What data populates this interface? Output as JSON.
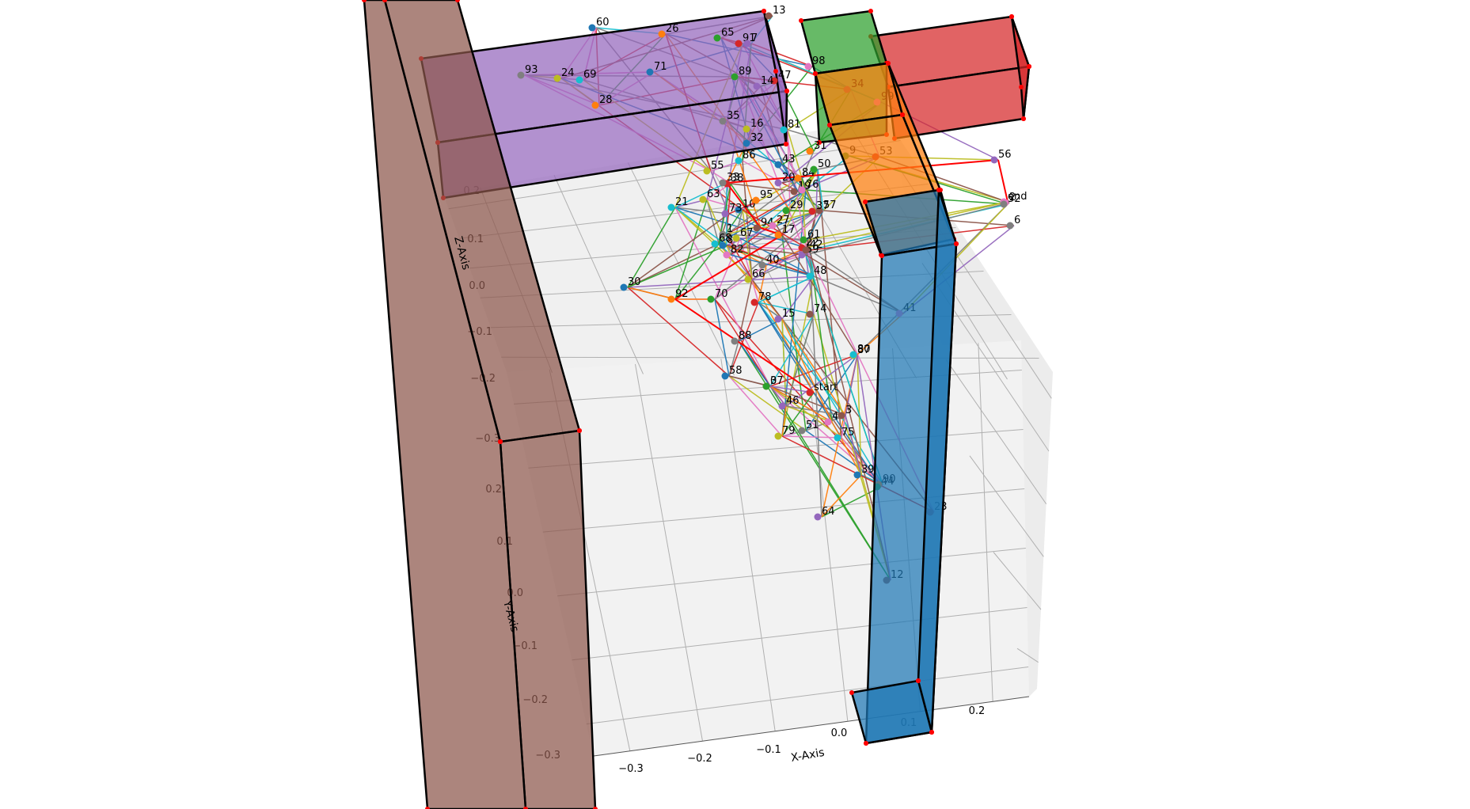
{
  "chart_data": {
    "type": "scatter",
    "subtype": "3d-graph-with-obstacles",
    "title": "",
    "axes": {
      "x": {
        "label": "X-Axis",
        "ticks": [
          "−0.3",
          "−0.2",
          "−0.1",
          "0.0",
          "0.1",
          "0.2"
        ]
      },
      "y": {
        "label": "Y-Axis",
        "ticks": [
          "0.2",
          "0.1",
          "0.0",
          "−0.1",
          "−0.2",
          "−0.3"
        ]
      },
      "z": {
        "label": "Z-Axis",
        "ticks": [
          "0.2",
          "0.1",
          "0.0",
          "−0.1",
          "−0.2",
          "−0.3"
        ]
      }
    },
    "grid": true,
    "obstacles": [
      {
        "name": "purple-box",
        "color": "#9467bd"
      },
      {
        "name": "green-box",
        "color": "#2ca02c"
      },
      {
        "name": "red-box",
        "color": "#d62728"
      },
      {
        "name": "orange-box",
        "color": "#ff7f0e"
      },
      {
        "name": "blue-box",
        "color": "#1f77b4"
      },
      {
        "name": "brown-box",
        "color": "#8c564b"
      }
    ],
    "special_nodes": [
      "start",
      "end"
    ],
    "node_labels": [
      "60",
      "26",
      "65",
      "91",
      "7",
      "13",
      "98",
      "93",
      "24",
      "69",
      "71",
      "28",
      "89",
      "47",
      "14",
      "34",
      "99",
      "35",
      "16",
      "81",
      "32",
      "31",
      "9",
      "53",
      "56",
      "57",
      "2",
      "6",
      "55",
      "86",
      "43",
      "84",
      "50",
      "38",
      "20",
      "19",
      "76",
      "33",
      "63",
      "21",
      "10",
      "95",
      "29",
      "37",
      "73",
      "94",
      "27",
      "1",
      "67",
      "68",
      "8",
      "17",
      "61",
      "22",
      "59",
      "42",
      "82",
      "40",
      "66",
      "48",
      "30",
      "92",
      "70",
      "78",
      "15",
      "74",
      "41",
      "88",
      "87",
      "80",
      "58",
      "0",
      "37",
      "start",
      "46",
      "3",
      "4",
      "51",
      "79",
      "75",
      "39",
      "90",
      "44",
      "23",
      "64",
      "12",
      "end",
      "52"
    ],
    "series_colors": [
      "#1f77b4",
      "#ff7f0e",
      "#2ca02c",
      "#d62728",
      "#9467bd",
      "#8c564b",
      "#e377c2",
      "#7f7f7f",
      "#bcbd22",
      "#17becf"
    ]
  }
}
